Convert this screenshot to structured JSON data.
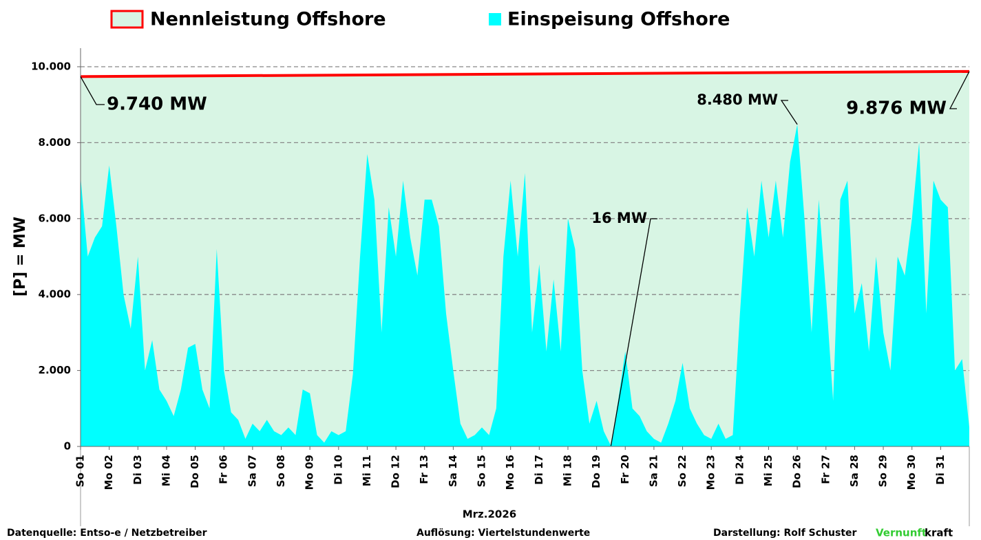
{
  "chart_data": {
    "type": "area",
    "legend": "top",
    "grid": true,
    "x_label": "Mrz.2026",
    "y_label": "[P] = MW",
    "xlim": [
      1,
      32
    ],
    "ylim": [
      0,
      10000
    ],
    "yticks": [
      0,
      {
        "value": 2000,
        "label": "2.000"
      },
      {
        "value": 4000,
        "label": "4.000"
      },
      {
        "value": 6000,
        "label": "6.000"
      },
      {
        "value": 8000,
        "label": "8.000"
      },
      {
        "value": 10000,
        "label": "10.000"
      }
    ],
    "xticks": [
      {
        "value": 1,
        "label": "So 01"
      },
      {
        "value": 2,
        "label": "Mo 02"
      },
      {
        "value": 3,
        "label": "Di 03"
      },
      {
        "value": 4,
        "label": "Mi 04"
      },
      {
        "value": 5,
        "label": "Do 05"
      },
      {
        "value": 6,
        "label": "Fr 06"
      },
      {
        "value": 7,
        "label": "Sa 07"
      },
      {
        "value": 8,
        "label": "So 08"
      },
      {
        "value": 9,
        "label": "Mo 09"
      },
      {
        "value": 10,
        "label": "Di 10"
      },
      {
        "value": 11,
        "label": "Mi 11"
      },
      {
        "value": 12,
        "label": "Do 12"
      },
      {
        "value": 13,
        "label": "Fr 13"
      },
      {
        "value": 14,
        "label": "Sa 14"
      },
      {
        "value": 15,
        "label": "So 15"
      },
      {
        "value": 16,
        "label": "Mo 16"
      },
      {
        "value": 17,
        "label": "Di 17"
      },
      {
        "value": 18,
        "label": "Mi 18"
      },
      {
        "value": 19,
        "label": "Do 19"
      },
      {
        "value": 20,
        "label": "Fr 20"
      },
      {
        "value": 21,
        "label": "Sa 21"
      },
      {
        "value": 22,
        "label": "So 22"
      },
      {
        "value": 23,
        "label": "Mo 23"
      },
      {
        "value": 24,
        "label": "Di 24"
      },
      {
        "value": 25,
        "label": "Mi 25"
      },
      {
        "value": 26,
        "label": "Do 26"
      },
      {
        "value": 27,
        "label": "Fr 27"
      },
      {
        "value": 28,
        "label": "Sa 28"
      },
      {
        "value": 29,
        "label": "So 29"
      },
      {
        "value": 30,
        "label": "Mo 30"
      },
      {
        "value": 31,
        "label": "Di 31"
      }
    ],
    "series": [
      {
        "name": "Nennleistung Offshore",
        "color": "#ff0000",
        "fill": "#d8f5e4",
        "x": [
          1,
          32
        ],
        "values": [
          9740,
          9876
        ]
      },
      {
        "name": "Einspeisung Offshore",
        "color": "#00ffff",
        "x": [
          1,
          1.25,
          1.5,
          1.75,
          2,
          2.25,
          2.5,
          2.75,
          3,
          3.25,
          3.5,
          3.75,
          4,
          4.25,
          4.5,
          4.75,
          5,
          5.25,
          5.5,
          5.75,
          6,
          6.25,
          6.5,
          6.75,
          7,
          7.25,
          7.5,
          7.75,
          8,
          8.25,
          8.5,
          8.75,
          9,
          9.25,
          9.5,
          9.75,
          10,
          10.25,
          10.5,
          10.75,
          11,
          11.25,
          11.5,
          11.75,
          12,
          12.25,
          12.5,
          12.75,
          13,
          13.25,
          13.5,
          13.75,
          14,
          14.25,
          14.5,
          14.75,
          15,
          15.25,
          15.5,
          15.75,
          16,
          16.25,
          16.5,
          16.75,
          17,
          17.25,
          17.5,
          17.75,
          18,
          18.25,
          18.5,
          18.75,
          19,
          19.25,
          19.5,
          19.75,
          20,
          20.25,
          20.5,
          20.75,
          21,
          21.25,
          21.5,
          21.75,
          22,
          22.25,
          22.5,
          22.75,
          23,
          23.25,
          23.5,
          23.75,
          24,
          24.25,
          24.5,
          24.75,
          25,
          25.25,
          25.5,
          25.75,
          26,
          26.25,
          26.5,
          26.75,
          27,
          27.25,
          27.5,
          27.75,
          28,
          28.25,
          28.5,
          28.75,
          29,
          29.25,
          29.5,
          29.75,
          30,
          30.25,
          30.5,
          30.75,
          31,
          31.25,
          31.5,
          31.75,
          32
        ],
        "values": [
          7100,
          5000,
          5500,
          5800,
          7400,
          5800,
          4000,
          3100,
          5000,
          2000,
          2800,
          1500,
          1200,
          800,
          1500,
          2600,
          2700,
          1500,
          1000,
          5200,
          2000,
          900,
          700,
          200,
          600,
          400,
          700,
          400,
          300,
          500,
          300,
          1500,
          1400,
          300,
          100,
          400,
          300,
          400,
          1900,
          5000,
          7700,
          6500,
          3000,
          6300,
          5000,
          7000,
          5500,
          4500,
          6500,
          6500,
          5800,
          3500,
          2000,
          600,
          200,
          300,
          500,
          300,
          1000,
          5000,
          7000,
          5000,
          7200,
          3000,
          4800,
          2500,
          4400,
          2500,
          6000,
          5200,
          2000,
          600,
          1200,
          400,
          16,
          1200,
          2500,
          1000,
          800,
          400,
          200,
          100,
          600,
          1200,
          2200,
          1000,
          600,
          300,
          200,
          600,
          200,
          300,
          3500,
          6300,
          5000,
          7000,
          5500,
          7000,
          5500,
          7500,
          8480,
          6000,
          3000,
          6500,
          4000,
          1200,
          6500,
          7000,
          3500,
          4300,
          2500,
          5000,
          3000,
          2000,
          5000,
          4500,
          6000,
          8000,
          3500,
          7000,
          6500,
          6300,
          2000,
          2300,
          500
        ]
      }
    ],
    "annotations": [
      {
        "text": "9.740 MW",
        "x": 1,
        "y": 9740
      },
      {
        "text": "8.480 MW",
        "x": 26,
        "y": 8480
      },
      {
        "text": "16 MW",
        "x": 19.5,
        "y": 16
      },
      {
        "text": "9.876 MW",
        "x": 32,
        "y": 9876
      }
    ],
    "footer": {
      "source": "Datenquelle:  Entso-e  / Netzbetreiber",
      "resolution": "Auflösung: Viertelstundenwerte",
      "author": "Darstellung:  Rolf Schuster",
      "brand_green": "Vernunft",
      "brand_rest": "kraft"
    }
  }
}
